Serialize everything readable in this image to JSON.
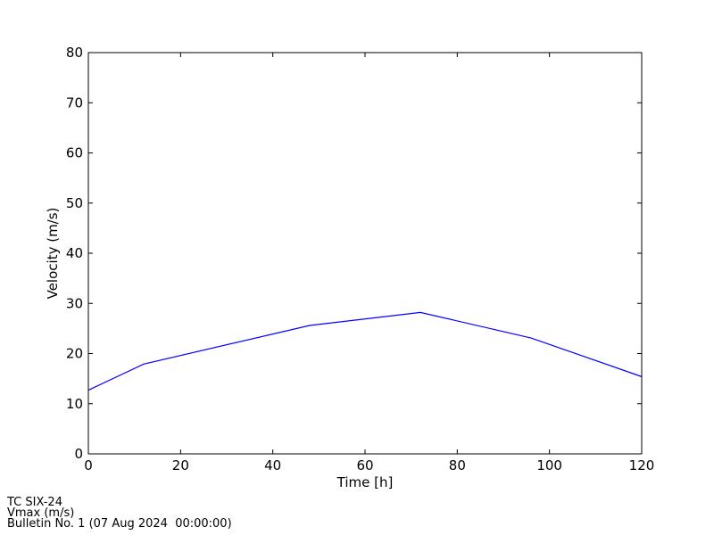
{
  "chart_data": {
    "type": "line",
    "xlabel": "Time [h]",
    "ylabel": "Velocity (m/s)",
    "xlim": [
      0,
      120
    ],
    "ylim": [
      0,
      80
    ],
    "xticks": [
      0,
      20,
      40,
      60,
      80,
      100,
      120
    ],
    "yticks": [
      0,
      10,
      20,
      30,
      40,
      50,
      60,
      70,
      80
    ],
    "grid": false,
    "series": [
      {
        "color": "#0000ff",
        "x": [
          0,
          12,
          48,
          72,
          96,
          120
        ],
        "y": [
          12.7,
          17.9,
          25.6,
          28.2,
          23.1,
          15.4
        ]
      }
    ]
  },
  "footer": {
    "line1": "TC SIX-24",
    "line2": "Vmax (m/s)",
    "line3": "Bulletin No. 1 (07 Aug 2024  00:00:00)"
  }
}
